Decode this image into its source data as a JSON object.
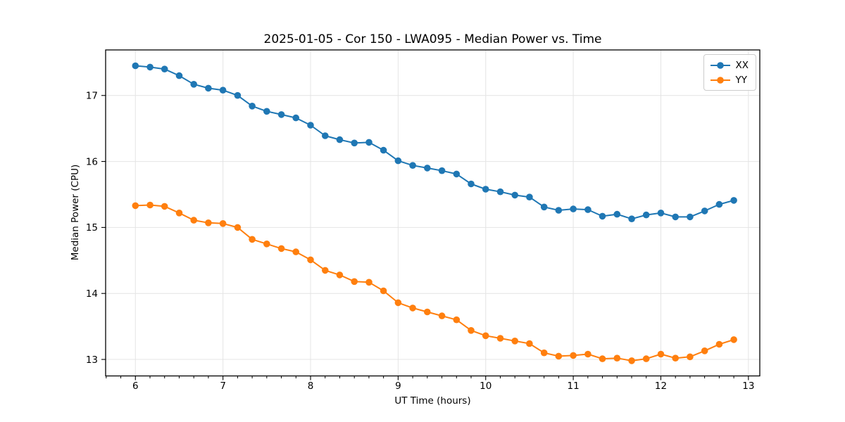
{
  "chart_data": {
    "type": "line",
    "title": "2025-01-05 - Cor 150 - LWA095 - Median Power vs. Time",
    "xlabel": "UT Time (hours)",
    "ylabel": "Median Power (CPU)",
    "xlim": [
      5.66,
      13.13
    ],
    "ylim": [
      12.75,
      17.69
    ],
    "xticks": [
      6,
      7,
      8,
      9,
      10,
      11,
      12,
      13
    ],
    "yticks": [
      13,
      14,
      15,
      16,
      17
    ],
    "minor_xtick_step": 0.1667,
    "grid": true,
    "grid_color": "#e4e4e4",
    "legend_position": "upper right",
    "x": [
      6.0,
      6.167,
      6.333,
      6.5,
      6.667,
      6.833,
      7.0,
      7.167,
      7.333,
      7.5,
      7.667,
      7.833,
      8.0,
      8.167,
      8.333,
      8.5,
      8.667,
      8.833,
      9.0,
      9.167,
      9.333,
      9.5,
      9.667,
      9.833,
      10.0,
      10.167,
      10.333,
      10.5,
      10.667,
      10.833,
      11.0,
      11.167,
      11.333,
      11.5,
      11.667,
      11.833,
      12.0,
      12.167,
      12.333,
      12.5,
      12.667,
      12.833
    ],
    "series": [
      {
        "name": "XX",
        "color": "#1f77b4",
        "values": [
          17.45,
          17.43,
          17.4,
          17.3,
          17.17,
          17.11,
          17.08,
          17.0,
          16.84,
          16.76,
          16.71,
          16.66,
          16.55,
          16.39,
          16.33,
          16.28,
          16.29,
          16.17,
          16.01,
          15.94,
          15.9,
          15.86,
          15.81,
          15.66,
          15.58,
          15.54,
          15.49,
          15.46,
          15.31,
          15.26,
          15.28,
          15.27,
          15.17,
          15.2,
          15.13,
          15.19,
          15.22,
          15.16,
          15.16,
          15.25,
          15.35,
          15.41
        ]
      },
      {
        "name": "YY",
        "color": "#ff7f0e",
        "values": [
          15.33,
          15.34,
          15.32,
          15.22,
          15.11,
          15.07,
          15.06,
          15.0,
          14.82,
          14.75,
          14.68,
          14.63,
          14.51,
          14.35,
          14.28,
          14.18,
          14.17,
          14.04,
          13.86,
          13.78,
          13.72,
          13.66,
          13.6,
          13.44,
          13.36,
          13.32,
          13.28,
          13.24,
          13.1,
          13.05,
          13.06,
          13.08,
          13.01,
          13.02,
          12.98,
          13.01,
          13.08,
          13.02,
          13.04,
          13.13,
          13.23,
          13.3
        ]
      }
    ]
  }
}
